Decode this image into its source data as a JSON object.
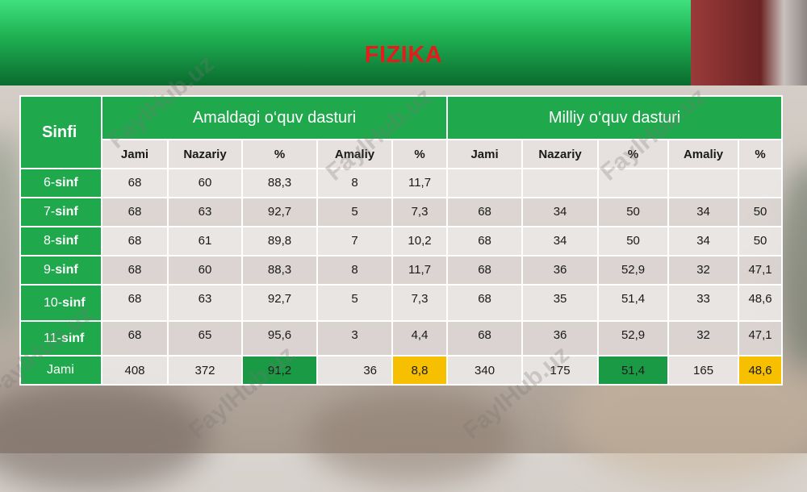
{
  "title": "FIZIKA",
  "watermark": "FaylHub.uz",
  "colors": {
    "header_green": "#1fa84c",
    "title_red": "#e41c1c",
    "highlight_green": "#1a9a45",
    "highlight_yellow": "#f6c000"
  },
  "table": {
    "row_header": "Sinfi",
    "group1": "Amaldagi o‘quv dasturi",
    "group2": "Milliy o‘quv dasturi",
    "sub_headers": [
      "Jami",
      "Nazariy",
      "%",
      "Amaliy",
      "%",
      "Jami",
      "Nazariy",
      "%",
      "Amaliy",
      "%"
    ],
    "rows": [
      {
        "num": "6-",
        "word": "sinf",
        "values": [
          "68",
          "60",
          "88,3",
          "8",
          "11,7",
          "",
          "",
          "",
          "",
          ""
        ]
      },
      {
        "num": "7-",
        "word": "sinf",
        "values": [
          "68",
          "63",
          "92,7",
          "5",
          "7,3",
          "68",
          "34",
          "50",
          "34",
          "50"
        ]
      },
      {
        "num": "8-",
        "word": "sinf",
        "values": [
          "68",
          "61",
          "89,8",
          "7",
          "10,2",
          "68",
          "34",
          "50",
          "34",
          "50"
        ]
      },
      {
        "num": "9-",
        "word": "sinf",
        "values": [
          "68",
          "60",
          "88,3",
          "8",
          "11,7",
          "68",
          "36",
          "52,9",
          "32",
          "47,1"
        ]
      },
      {
        "num": "10-",
        "word": "sinf",
        "values": [
          "68",
          "63",
          "92,7",
          "5",
          "7,3",
          "68",
          "35",
          "51,4",
          "33",
          "48,6"
        ]
      },
      {
        "num": "11-",
        "word": "sinf",
        "values": [
          "68",
          "65",
          "95,6",
          "3",
          "4,4",
          "68",
          "36",
          "52,9",
          "32",
          "47,1"
        ]
      }
    ],
    "total": {
      "label": "Jami",
      "values": [
        "408",
        "372",
        "91,2",
        "36",
        "8,8",
        "340",
        "175",
        "51,4",
        "165",
        "48,6"
      ]
    }
  }
}
